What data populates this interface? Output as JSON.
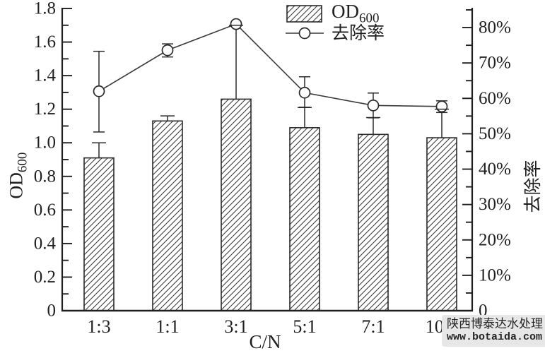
{
  "figure": {
    "xlabel": "C/N",
    "ylabel_left_main": "OD",
    "ylabel_left_sub": "600",
    "ylabel_right": "去除率"
  },
  "legend": {
    "bar_label_main": "OD",
    "bar_label_sub": "600",
    "line_label": "去除率"
  },
  "watermark": {
    "line1": "陕西博泰达水处理",
    "line2": "www.botaida.com"
  },
  "colors": {
    "axis": "#1f1f1f",
    "bar_edge": "#2a2a2a",
    "hatch": "#3c3c3c",
    "line_series": "#3a3a3a",
    "marker_fill": "#ffffff",
    "watermark_bg": "#e7e7e7",
    "watermark_text": "#252525"
  },
  "chart_data": {
    "type": "bar",
    "title": "",
    "xlabel": "C/N",
    "categories": [
      "1:3",
      "1:1",
      "3:1",
      "5:1",
      "7:1",
      "10:1"
    ],
    "grid": false,
    "legend_position": "top-center",
    "left_axis": {
      "label": "OD600",
      "range": [
        0,
        1.8
      ],
      "major_tick_step": 0.2,
      "minor_tick_step": 0.1,
      "tick_labels": [
        "0",
        "0.2",
        "0.4",
        "0.6",
        "0.8",
        "1.0",
        "1.2",
        "1.4",
        "1.6",
        "1.8"
      ]
    },
    "right_axis": {
      "label": "去除率",
      "unit": "%",
      "range_percent": [
        0,
        85.4
      ],
      "major_tick_step": 10,
      "minor_tick_step": 5,
      "tick_labels": [
        "0",
        "10%",
        "20%",
        "30%",
        "40%",
        "50%",
        "60%",
        "70%",
        "80%"
      ]
    },
    "series": [
      {
        "name": "OD600",
        "type": "bar",
        "axis": "left",
        "values": [
          0.91,
          1.13,
          1.26,
          1.09,
          1.05,
          1.03
        ],
        "error_top": [
          1.0,
          1.16,
          1.7,
          1.21,
          1.15,
          1.2
        ],
        "style": {
          "fill": "white",
          "hatch": "diagonal",
          "edge": "#2a2a2a"
        }
      },
      {
        "name": "去除率",
        "type": "line",
        "axis": "right",
        "values_percent": [
          62,
          73.6,
          81,
          61.6,
          58,
          57.7
        ],
        "error_top_percent": [
          73.3,
          75.4,
          null,
          66.1,
          61.5,
          59.3
        ],
        "error_bottom_percent": [
          50.5,
          71.7,
          null,
          57.5,
          54.5,
          56.0
        ],
        "style": {
          "marker": "open-circle",
          "color": "#3a3a3a"
        }
      }
    ]
  }
}
